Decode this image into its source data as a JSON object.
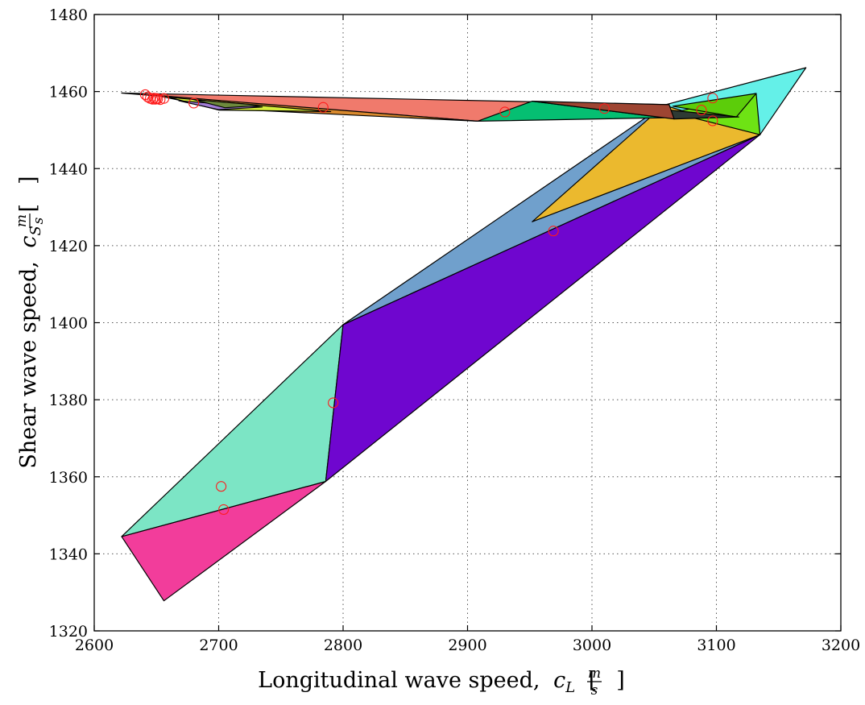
{
  "chart_data": {
    "type": "area",
    "xlabel": "Longitudinal wave speed,",
    "xlabel_symbol": "c",
    "xlabel_subscript": "L",
    "ylabel": "Shear wave speed,",
    "ylabel_symbol": "c",
    "ylabel_subscript": "S",
    "unit_numerator": "m",
    "unit_denominator": "s",
    "xlim": [
      2600,
      3200
    ],
    "ylim": [
      1320,
      1480
    ],
    "xticks": [
      2600,
      2700,
      2800,
      2900,
      3000,
      3100,
      3200
    ],
    "yticks": [
      1320,
      1340,
      1360,
      1380,
      1400,
      1420,
      1440,
      1460,
      1480
    ],
    "grid": true,
    "patches": [
      {
        "color": "#f23d9b",
        "points": [
          [
            2622,
            1344.5
          ],
          [
            2786,
            1358.8
          ],
          [
            2656,
            1327.8
          ]
        ]
      },
      {
        "color": "#7ce5c5",
        "points": [
          [
            2622,
            1344.5
          ],
          [
            2800,
            1399.5
          ],
          [
            2786,
            1358.8
          ]
        ]
      },
      {
        "color": "#6f06cf",
        "points": [
          [
            2800,
            1399.5
          ],
          [
            3135,
            1448.8
          ],
          [
            2786,
            1358.8
          ]
        ]
      },
      {
        "color": "#70a0cc",
        "points": [
          [
            2800,
            1399.5
          ],
          [
            3058,
            1456.5
          ],
          [
            3135,
            1448.8
          ]
        ]
      },
      {
        "color": "#ebb92e",
        "points": [
          [
            2952,
            1426.2
          ],
          [
            3058,
            1456.5
          ],
          [
            3135,
            1448.8
          ]
        ]
      },
      {
        "color": "#64f0e8",
        "points": [
          [
            3058,
            1456.5
          ],
          [
            3172,
            1466.2
          ],
          [
            3135,
            1448.8
          ]
        ]
      },
      {
        "color": "#6ee314",
        "points": [
          [
            3065,
            1454.5
          ],
          [
            3132,
            1459.5
          ],
          [
            3135,
            1448.8
          ]
        ]
      },
      {
        "color": "#5ccd0a",
        "points": [
          [
            3065,
            1456.2
          ],
          [
            3132,
            1459.5
          ],
          [
            3116,
            1453.4
          ]
        ]
      },
      {
        "color": "#2e3a34",
        "points": [
          [
            3062,
            1455.2
          ],
          [
            3118,
            1453.4
          ],
          [
            3066,
            1452.9
          ]
        ]
      },
      {
        "color": "#f07a6c",
        "points": [
          [
            2622,
            1459.6
          ],
          [
            3062,
            1456.6
          ],
          [
            2908,
            1452.3
          ]
        ]
      },
      {
        "color": "#05bf72",
        "points": [
          [
            2908,
            1452.3
          ],
          [
            2952,
            1457.5
          ],
          [
            3058,
            1453.2
          ]
        ]
      },
      {
        "color": "#9e4532",
        "points": [
          [
            2952,
            1457.5
          ],
          [
            3062,
            1456.6
          ],
          [
            3066,
            1452.9
          ]
        ]
      },
      {
        "color": "#d98a2e",
        "points": [
          [
            2650,
            1459.0
          ],
          [
            2908,
            1452.3
          ],
          [
            2700,
            1455.6
          ]
        ]
      },
      {
        "color": "#d6ef3c",
        "points": [
          [
            2660,
            1458.5
          ],
          [
            2790,
            1454.8
          ],
          [
            2700,
            1455.2
          ]
        ]
      },
      {
        "color": "#a17ed6",
        "points": [
          [
            2668,
            1457.6
          ],
          [
            2735,
            1456.0
          ],
          [
            2700,
            1455.3
          ]
        ]
      },
      {
        "color": "#6e8a3d",
        "points": [
          [
            2680,
            1457.9
          ],
          [
            2735,
            1456.4
          ],
          [
            2705,
            1455.8
          ]
        ]
      }
    ],
    "markers": [
      [
        2641,
        1459.2
      ],
      [
        2643,
        1458.6
      ],
      [
        2645,
        1458.2
      ],
      [
        2647,
        1458.0
      ],
      [
        2648,
        1458.3
      ],
      [
        2649,
        1458.0
      ],
      [
        2650,
        1458.2
      ],
      [
        2651,
        1458.1
      ],
      [
        2653,
        1457.9
      ],
      [
        2656,
        1458.2
      ],
      [
        2680,
        1457.0
      ],
      [
        2702,
        1357.5
      ],
      [
        2704,
        1351.5
      ],
      [
        2784,
        1455.9
      ],
      [
        2792,
        1379.2
      ],
      [
        2930,
        1454.7
      ],
      [
        2969,
        1423.8
      ],
      [
        3010,
        1455.6
      ],
      [
        3088,
        1455.2
      ],
      [
        3097,
        1452.4
      ],
      [
        3097,
        1458.3
      ]
    ]
  }
}
